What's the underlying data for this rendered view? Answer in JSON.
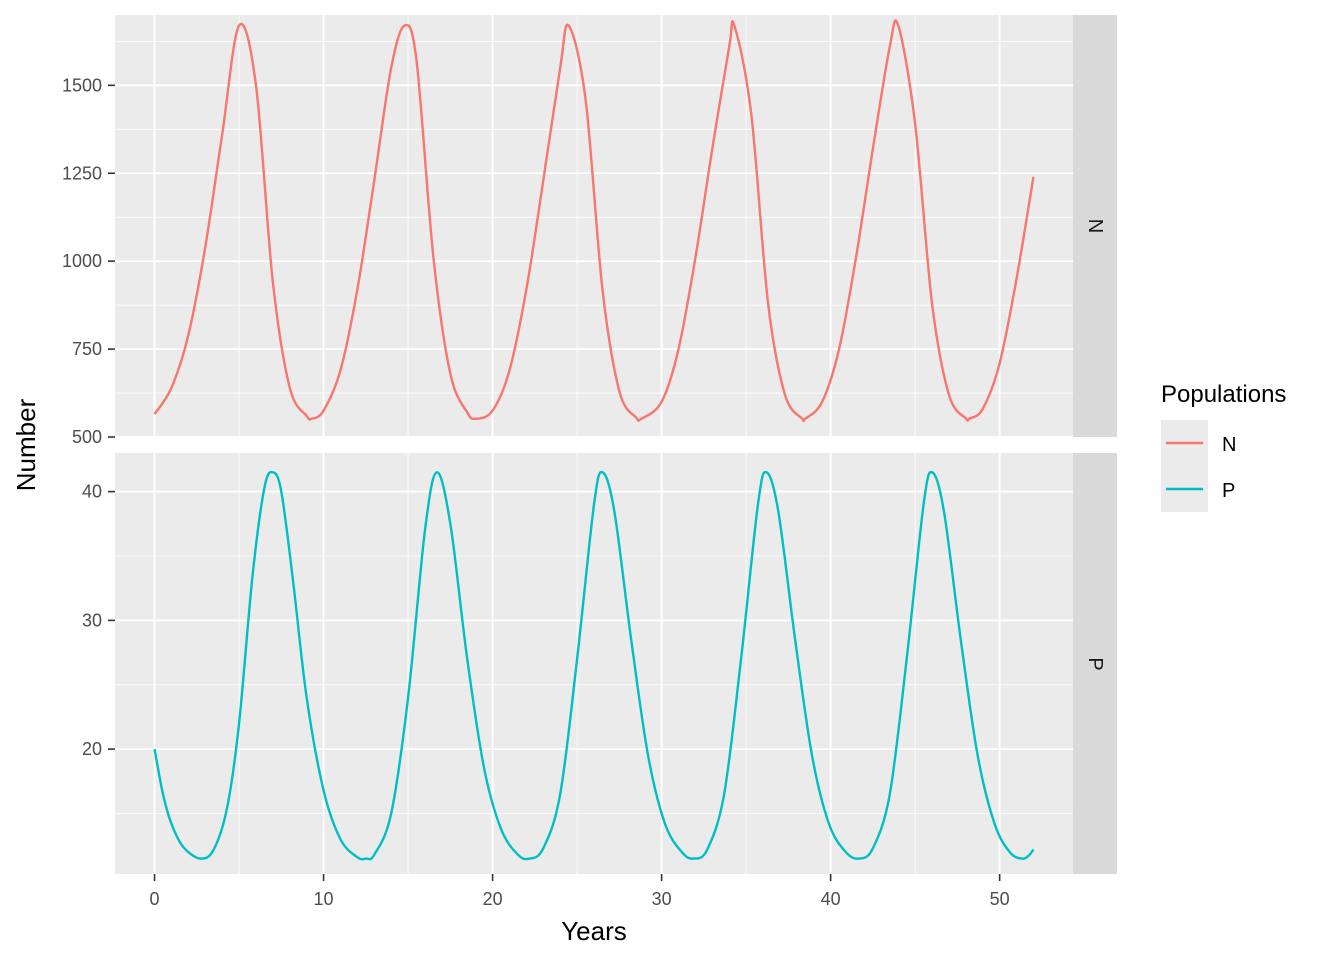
{
  "chart_data": {
    "type": "line",
    "title": "",
    "xlabel": "Years",
    "ylabel": "Number",
    "xlim": [
      0,
      52
    ],
    "x_ticks": [
      0,
      10,
      20,
      30,
      40,
      50
    ],
    "grid": true,
    "legend": {
      "title": "Populations",
      "position": "right",
      "entries": [
        {
          "label": "N",
          "color": "#F8766D"
        },
        {
          "label": "P",
          "color": "#00BFC4"
        }
      ]
    },
    "facets": [
      {
        "strip": "N",
        "series": "N",
        "color": "#F8766D",
        "ylim": [
          500,
          1700
        ],
        "y_ticks": [
          500,
          750,
          1000,
          1250,
          1500
        ],
        "points": [
          [
            0,
            565
          ],
          [
            1,
            640
          ],
          [
            2,
            790
          ],
          [
            3,
            1040
          ],
          [
            4,
            1360
          ],
          [
            5,
            1670
          ],
          [
            6,
            1500
          ],
          [
            7,
            940
          ],
          [
            8,
            640
          ],
          [
            9,
            560
          ],
          [
            9.3,
            552
          ],
          [
            10,
            575
          ],
          [
            11,
            690
          ],
          [
            12,
            920
          ],
          [
            13,
            1230
          ],
          [
            14,
            1550
          ],
          [
            14.8,
            1670
          ],
          [
            15.5,
            1570
          ],
          [
            16.5,
            1010
          ],
          [
            17.5,
            680
          ],
          [
            18.5,
            570
          ],
          [
            19,
            552
          ],
          [
            20,
            575
          ],
          [
            21,
            690
          ],
          [
            22,
            920
          ],
          [
            23,
            1230
          ],
          [
            24,
            1550
          ],
          [
            24.5,
            1670
          ],
          [
            25.5,
            1460
          ],
          [
            26.5,
            920
          ],
          [
            27.5,
            630
          ],
          [
            28.5,
            555
          ],
          [
            28.8,
            552
          ],
          [
            30,
            600
          ],
          [
            31,
            750
          ],
          [
            32,
            1010
          ],
          [
            33,
            1320
          ],
          [
            34,
            1610
          ],
          [
            34.3,
            1670
          ],
          [
            35.3,
            1420
          ],
          [
            36.3,
            880
          ],
          [
            37.3,
            620
          ],
          [
            38.3,
            553
          ],
          [
            38.5,
            552
          ],
          [
            39.5,
            600
          ],
          [
            40.5,
            750
          ],
          [
            41.5,
            1010
          ],
          [
            42.5,
            1320
          ],
          [
            43.5,
            1610
          ],
          [
            44,
            1670
          ],
          [
            45,
            1390
          ],
          [
            46,
            880
          ],
          [
            47,
            620
          ],
          [
            48,
            553
          ],
          [
            48.2,
            552
          ],
          [
            49,
            580
          ],
          [
            50,
            710
          ],
          [
            51,
            950
          ],
          [
            52,
            1240
          ]
        ]
      },
      {
        "strip": "P",
        "series": "P",
        "color": "#00BFC4",
        "ylim": [
          10.3,
          43
        ],
        "y_ticks": [
          20,
          30,
          40
        ],
        "points": [
          [
            0,
            20
          ],
          [
            0.5,
            16.5
          ],
          [
            1,
            14.2
          ],
          [
            1.7,
            12.4
          ],
          [
            2.7,
            11.5
          ],
          [
            3.5,
            12.2
          ],
          [
            4.3,
            15.5
          ],
          [
            5,
            22
          ],
          [
            5.8,
            33.5
          ],
          [
            6.5,
            40.3
          ],
          [
            7,
            41.5
          ],
          [
            7.5,
            40
          ],
          [
            8.2,
            33
          ],
          [
            9,
            24
          ],
          [
            10,
            16.8
          ],
          [
            11,
            13
          ],
          [
            12,
            11.6
          ],
          [
            12.5,
            11.5
          ],
          [
            13,
            11.8
          ],
          [
            14,
            15
          ],
          [
            15,
            24
          ],
          [
            16,
            37
          ],
          [
            16.7,
            41.5
          ],
          [
            17.5,
            37.5
          ],
          [
            18.5,
            27
          ],
          [
            19.5,
            18.5
          ],
          [
            20.5,
            13.8
          ],
          [
            21.5,
            11.8
          ],
          [
            22.2,
            11.5
          ],
          [
            23,
            12.3
          ],
          [
            24,
            16.5
          ],
          [
            25,
            27
          ],
          [
            26,
            39
          ],
          [
            26.5,
            41.5
          ],
          [
            27.2,
            38.5
          ],
          [
            28.2,
            28.5
          ],
          [
            29.2,
            19.5
          ],
          [
            30.2,
            14.2
          ],
          [
            31.2,
            12
          ],
          [
            31.9,
            11.5
          ],
          [
            32.7,
            12.2
          ],
          [
            33.7,
            16.5
          ],
          [
            34.7,
            27
          ],
          [
            35.7,
            39
          ],
          [
            36.2,
            41.5
          ],
          [
            36.9,
            38.5
          ],
          [
            37.9,
            28.5
          ],
          [
            38.9,
            19.5
          ],
          [
            39.9,
            14.2
          ],
          [
            40.9,
            12
          ],
          [
            41.7,
            11.5
          ],
          [
            42.5,
            12.3
          ],
          [
            43.5,
            16.5
          ],
          [
            44.5,
            27
          ],
          [
            45.5,
            39
          ],
          [
            46,
            41.5
          ],
          [
            46.7,
            38.5
          ],
          [
            47.7,
            28.5
          ],
          [
            48.7,
            19.5
          ],
          [
            49.7,
            14.2
          ],
          [
            50.6,
            12
          ],
          [
            51.3,
            11.5
          ],
          [
            51.7,
            11.7
          ],
          [
            52,
            12.2
          ]
        ]
      }
    ]
  }
}
